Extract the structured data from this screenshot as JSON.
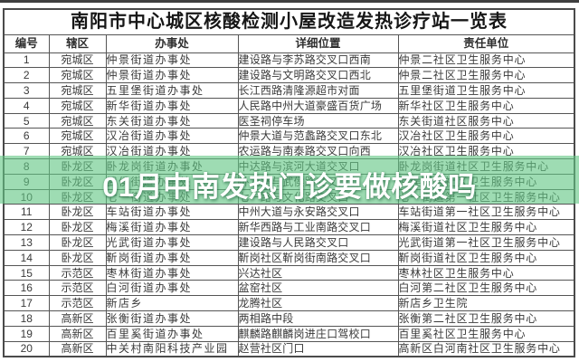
{
  "page": {
    "top_strip_color": "#3f3f3f",
    "background": "#ffffff"
  },
  "table": {
    "title": "南阳市中心城区核酸检测小屋改造发热诊疗站一览表",
    "headers": [
      "编号",
      "辖区",
      "办事处",
      "详细位置",
      "责任单位"
    ],
    "rows": [
      [
        "1",
        "宛城区",
        "仲景街道办事处",
        "建设路与李苏路交叉口西南",
        "仲景二社区卫生服务中心"
      ],
      [
        "2",
        "宛城区",
        "仲景街道办事处",
        "建设路与文明路交叉口西北",
        "仲景二社区卫生服务中心"
      ],
      [
        "3",
        "宛城区",
        "五里堡街道办事处",
        "长江西路清隆源超市对面",
        "五里堡街道卫生服务中心"
      ],
      [
        "4",
        "宛城区",
        "新华街道办事处",
        "人民路中州大道豪盛百货广场",
        "新华社区卫生服务中心"
      ],
      [
        "5",
        "宛城区",
        "东关街道办事处",
        "医圣祠停车场",
        "东关街道社区服务中心"
      ],
      [
        "6",
        "宛城区",
        "汉冶街道办事处",
        "仲景大道与范蠡路交叉口东北",
        "汉冶社区卫生服务中心"
      ],
      [
        "7",
        "宛城区",
        "汉冶街道办事处",
        "农运路与南泰路交叉口向西",
        "汉冶社区卫生服务中心"
      ],
      [
        "8",
        "卧龙区",
        "卧龙岗街道办事处",
        "中达路与滨河大道交叉口",
        "卧龙岗街道社区卫生服务中心"
      ],
      [
        "9",
        "卧龙区",
        "武侯街道办事处",
        "卧龙路与武侯路交叉口",
        "武侯街道社区卫生服务中心"
      ],
      [
        "10",
        "卧龙区",
        "七一街道办事处",
        "七一路与文化路交叉口",
        "七一街道第一社区卫生服务中心"
      ],
      [
        "11",
        "卧龙区",
        "车站街道办事处",
        "中州大道与永安路交叉口",
        "车站街道第一社区卫生服务中心"
      ],
      [
        "12",
        "卧龙区",
        "梅溪街道办事处",
        "新华西路与工业南路交叉口",
        "梅溪街道社区卫生服务中心"
      ],
      [
        "13",
        "卧龙区",
        "光武街道办事处",
        "建设路与人民路交叉口",
        "光武街道第一社区卫生服务中心"
      ],
      [
        "14",
        "卧龙区",
        "靳岗街道办事处",
        "靳岗社区靳岗街南路交叉口",
        "靳岗街道社区卫生服务中心"
      ],
      [
        "15",
        "示范区",
        "枣林街道办事处",
        "兴达社区",
        "枣林社区卫生服务中心"
      ],
      [
        "16",
        "示范区",
        "白河街道办事处",
        "盆窑社区",
        "白河第二社区卫生服务中心"
      ],
      [
        "17",
        "示范区",
        "新店乡",
        "龙腾社区",
        "新店乡卫生院"
      ],
      [
        "18",
        "高新区",
        "张衡街道办事处",
        "两相路中段",
        "张衡第二社区卫生服务中心"
      ],
      [
        "19",
        "高新区",
        "百里奚街道办事处",
        "麒麟路麒麟岗进庄口驾校口",
        "百里奚社区卫生服务中心"
      ],
      [
        "20",
        "高新区",
        "中关村南阳科技产业园",
        "赵营社区门口",
        "高新区白河南社区卫生服务中心"
      ]
    ]
  },
  "overlay": {
    "text": "01月中南发热门诊要做核酸吗",
    "banner_color": "rgba(98,199,132,0.62)",
    "text_color": "#ffffff"
  }
}
